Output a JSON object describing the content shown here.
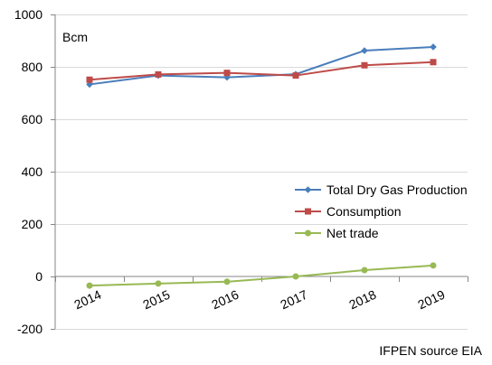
{
  "chart_data": {
    "type": "line",
    "categories": [
      "2014",
      "2015",
      "2016",
      "2017",
      "2018",
      "2019"
    ],
    "series": [
      {
        "name": "Total Dry Gas Production",
        "values": [
          733,
          767,
          760,
          772,
          862,
          876
        ],
        "color": "#4a7ebb",
        "marker": "diamond"
      },
      {
        "name": "Consumption",
        "values": [
          751,
          771,
          777,
          767,
          806,
          818
        ],
        "color": "#be4b48",
        "marker": "square"
      },
      {
        "name": "Net trade",
        "values": [
          -35,
          -27,
          -20,
          0,
          24,
          42
        ],
        "color": "#98b954",
        "marker": "circle"
      }
    ],
    "y_ticks": [
      "-200",
      "0",
      "200",
      "400",
      "600",
      "800",
      "1000"
    ],
    "ylim": [
      -200,
      1000
    ],
    "unit_label": "Bcm",
    "source_note": "IFPEN source EIA",
    "grid": true,
    "legend_position": "right"
  }
}
